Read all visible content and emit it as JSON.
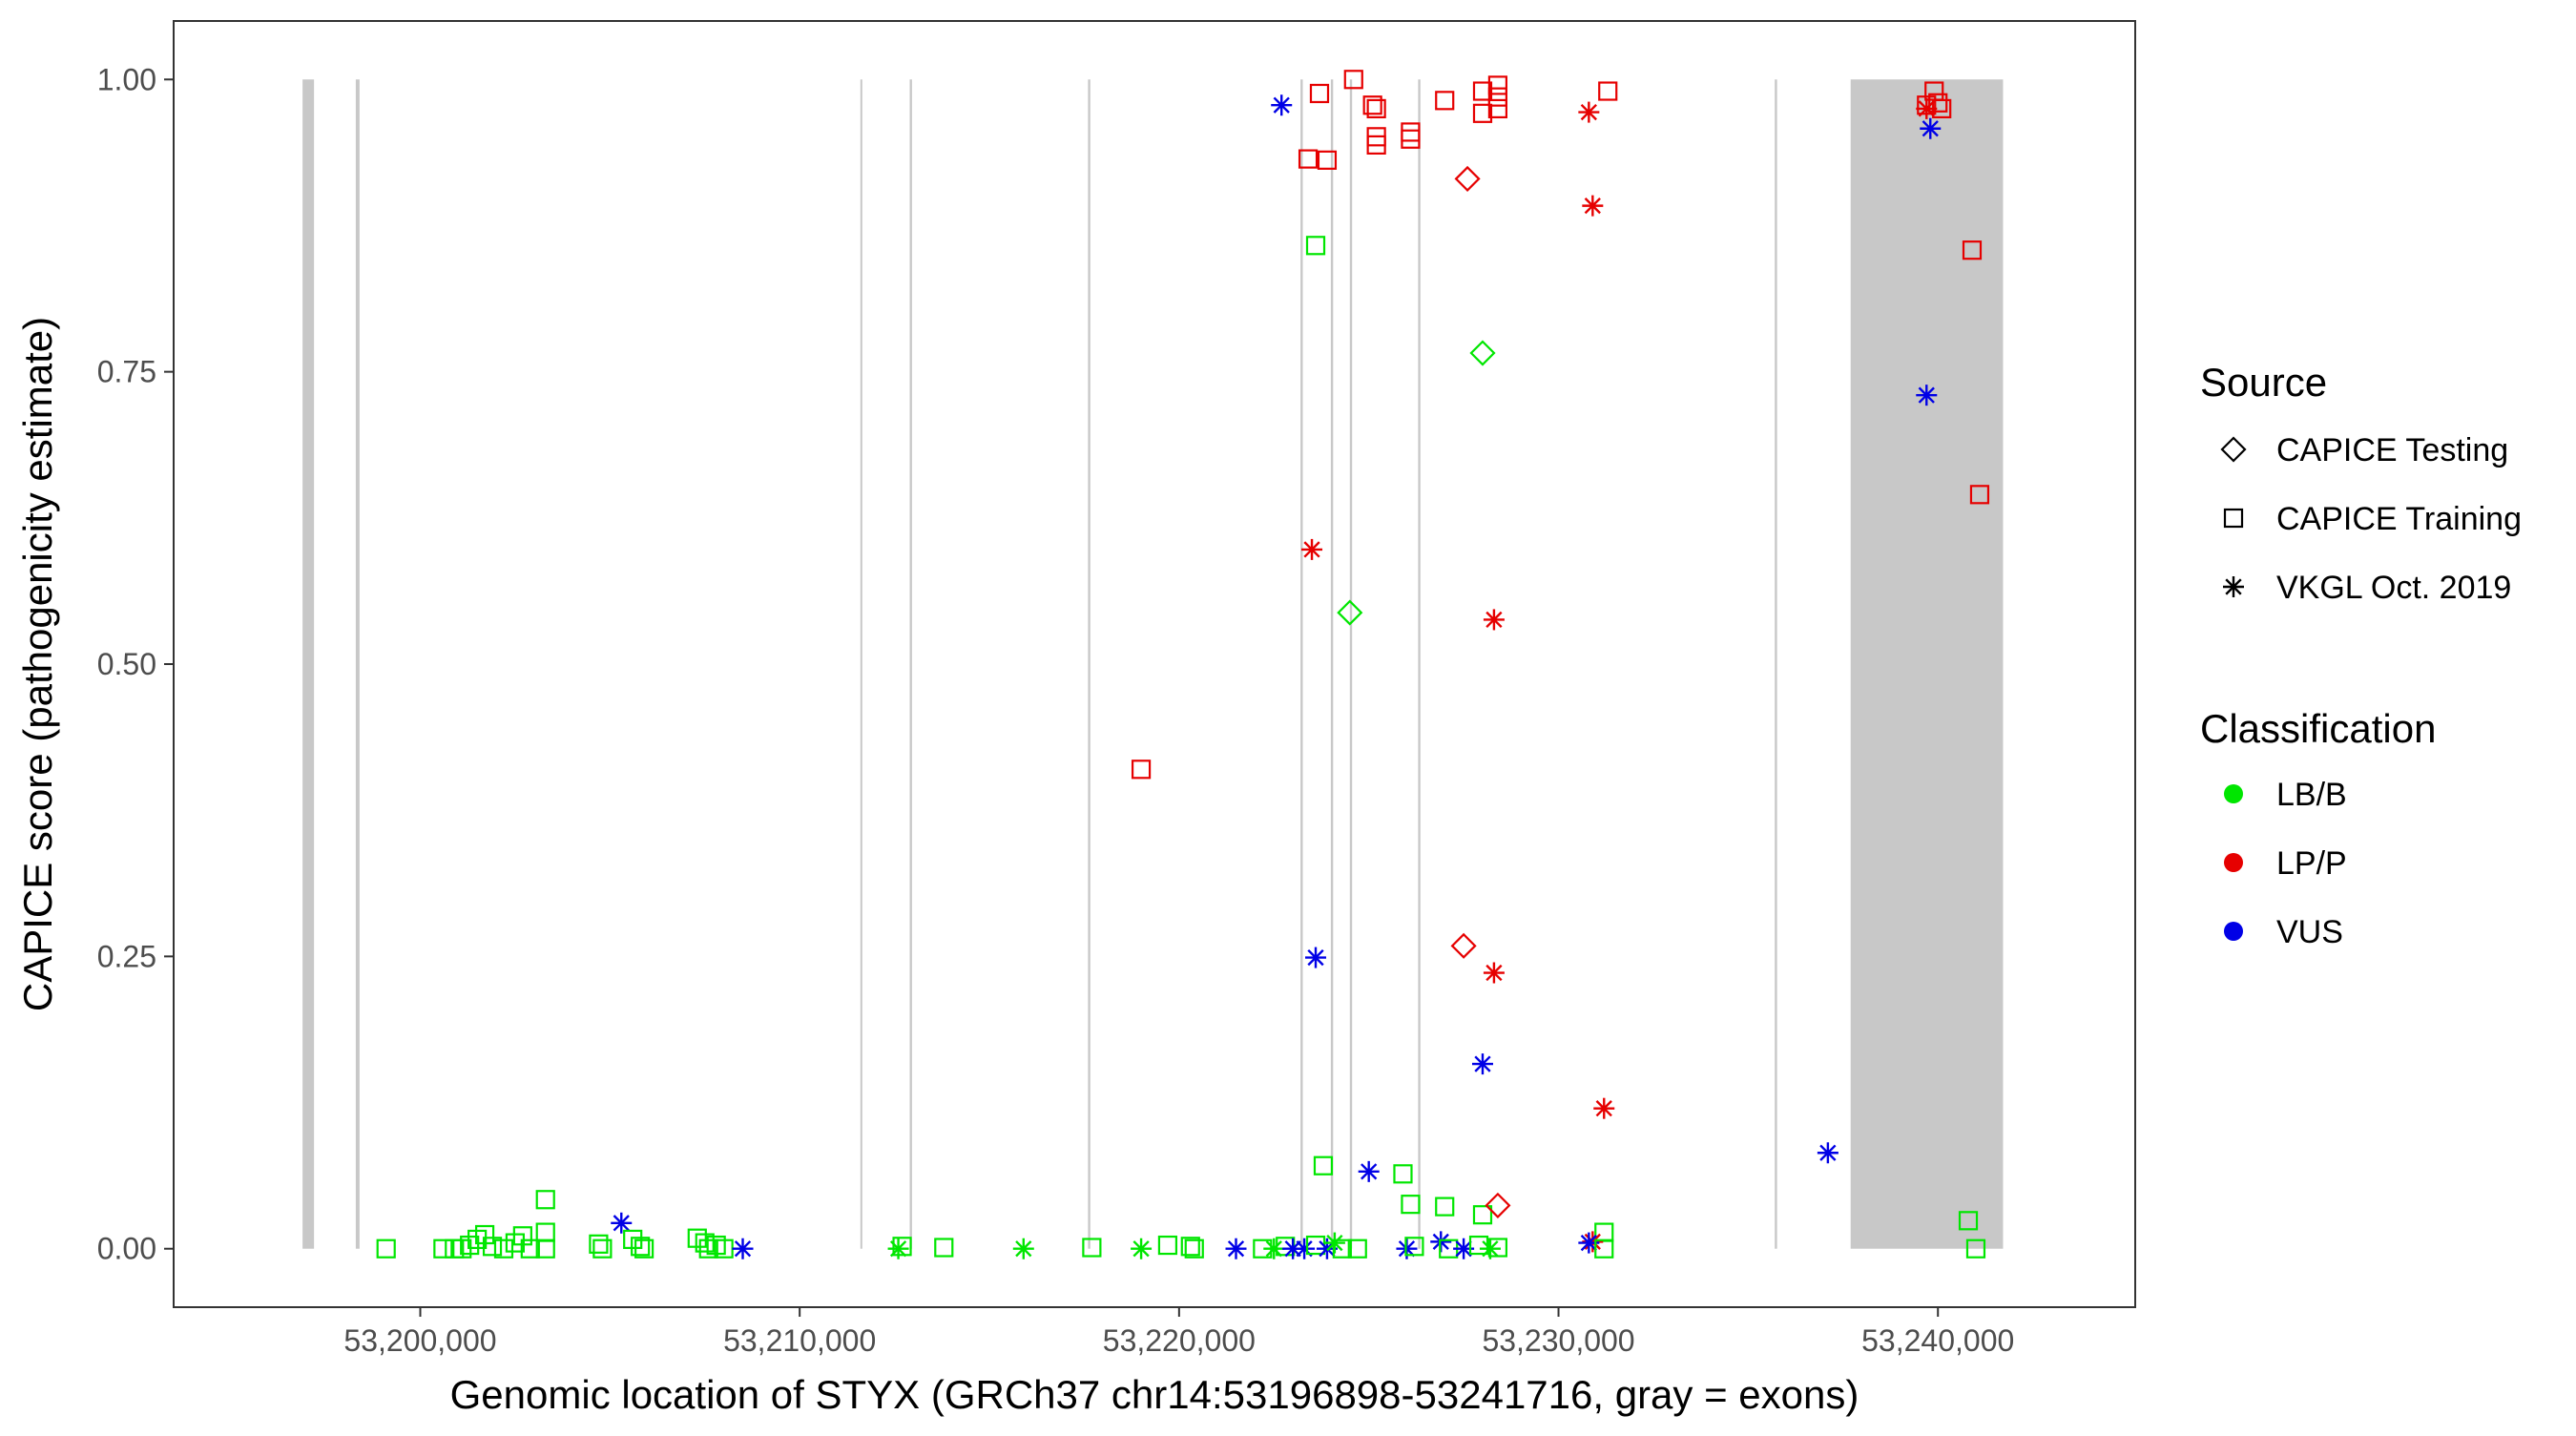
{
  "chart_data": {
    "type": "scatter",
    "xlabel": "Genomic location of STYX (GRCh37 chr14:53196898-53241716, gray = exons)",
    "ylabel": "CAPICE score (pathogenicity estimate)",
    "xlim": [
      53193500,
      53245200
    ],
    "ylim": [
      -0.05,
      1.05
    ],
    "x_ticks": [
      53200000,
      53210000,
      53220000,
      53230000,
      53240000
    ],
    "x_tick_labels": [
      "53,200,000",
      "53,210,000",
      "53,220,000",
      "53,230,000",
      "53,240,000"
    ],
    "y_ticks": [
      0,
      0.25,
      0.5,
      0.75,
      1
    ],
    "y_tick_labels": [
      "0.00",
      "0.25",
      "0.50",
      "0.75",
      "1.00"
    ],
    "grid": false,
    "legend_position": "right",
    "legend": {
      "source_title": "Source",
      "source_items": [
        {
          "label": "CAPICE Testing",
          "shape": "diamond"
        },
        {
          "label": "CAPICE Training",
          "shape": "square"
        },
        {
          "label": "VKGL Oct. 2019",
          "shape": "asterisk"
        }
      ],
      "class_title": "Classification",
      "class_items": [
        {
          "label": "LB/B",
          "color": "#00e600"
        },
        {
          "label": "LP/P",
          "color": "#e60000"
        },
        {
          "label": "VUS",
          "color": "#0000e6"
        }
      ]
    },
    "exons": [
      [
        53196898,
        53197200
      ],
      [
        53198300,
        53198400
      ],
      [
        53211600,
        53211640
      ],
      [
        53212900,
        53212960
      ],
      [
        53217600,
        53217660
      ],
      [
        53223200,
        53223260
      ],
      [
        53224000,
        53224060
      ],
      [
        53224500,
        53224560
      ],
      [
        53226300,
        53226360
      ],
      [
        53235700,
        53235760
      ],
      [
        53237700,
        53241716
      ]
    ],
    "points": [
      {
        "x": 53222700,
        "y": 0.978,
        "source": "VKGL Oct. 2019",
        "class": "VUS"
      },
      {
        "x": 53223400,
        "y": 0.932,
        "source": "CAPICE Training",
        "class": "LP/P"
      },
      {
        "x": 53223700,
        "y": 0.988,
        "source": "CAPICE Training",
        "class": "LP/P"
      },
      {
        "x": 53223900,
        "y": 0.931,
        "source": "CAPICE Training",
        "class": "LP/P"
      },
      {
        "x": 53224600,
        "y": 1.0,
        "source": "CAPICE Training",
        "class": "LP/P"
      },
      {
        "x": 53225100,
        "y": 0.978,
        "source": "CAPICE Training",
        "class": "LP/P"
      },
      {
        "x": 53225200,
        "y": 0.975,
        "source": "CAPICE Training",
        "class": "LP/P"
      },
      {
        "x": 53225200,
        "y": 0.951,
        "source": "CAPICE Training",
        "class": "LP/P"
      },
      {
        "x": 53225200,
        "y": 0.944,
        "source": "CAPICE Training",
        "class": "LP/P"
      },
      {
        "x": 53226100,
        "y": 0.955,
        "source": "CAPICE Training",
        "class": "LP/P"
      },
      {
        "x": 53226100,
        "y": 0.949,
        "source": "CAPICE Training",
        "class": "LP/P"
      },
      {
        "x": 53227000,
        "y": 0.982,
        "source": "CAPICE Training",
        "class": "LP/P"
      },
      {
        "x": 53228000,
        "y": 0.99,
        "source": "CAPICE Training",
        "class": "LP/P"
      },
      {
        "x": 53228000,
        "y": 0.971,
        "source": "CAPICE Training",
        "class": "LP/P"
      },
      {
        "x": 53228400,
        "y": 0.995,
        "source": "CAPICE Training",
        "class": "LP/P"
      },
      {
        "x": 53228400,
        "y": 0.985,
        "source": "CAPICE Training",
        "class": "LP/P"
      },
      {
        "x": 53228400,
        "y": 0.975,
        "source": "CAPICE Training",
        "class": "LP/P"
      },
      {
        "x": 53227600,
        "y": 0.915,
        "source": "CAPICE Testing",
        "class": "LP/P"
      },
      {
        "x": 53230800,
        "y": 0.972,
        "source": "VKGL Oct. 2019",
        "class": "LP/P"
      },
      {
        "x": 53231300,
        "y": 0.99,
        "source": "CAPICE Training",
        "class": "LP/P"
      },
      {
        "x": 53230900,
        "y": 0.892,
        "source": "VKGL Oct. 2019",
        "class": "LP/P"
      },
      {
        "x": 53239700,
        "y": 0.975,
        "source": "VKGL Oct. 2019",
        "class": "LP/P"
      },
      {
        "x": 53239900,
        "y": 0.99,
        "source": "CAPICE Training",
        "class": "LP/P"
      },
      {
        "x": 53240000,
        "y": 0.98,
        "source": "CAPICE Training",
        "class": "LP/P"
      },
      {
        "x": 53240100,
        "y": 0.975,
        "source": "CAPICE Training",
        "class": "LP/P"
      },
      {
        "x": 53239700,
        "y": 0.978,
        "source": "CAPICE Training",
        "class": "LP/P"
      },
      {
        "x": 53239800,
        "y": 0.958,
        "source": "VKGL Oct. 2019",
        "class": "VUS"
      },
      {
        "x": 53240900,
        "y": 0.854,
        "source": "CAPICE Training",
        "class": "LP/P"
      },
      {
        "x": 53223600,
        "y": 0.858,
        "source": "CAPICE Training",
        "class": "LB/B"
      },
      {
        "x": 53228000,
        "y": 0.766,
        "source": "CAPICE Testing",
        "class": "LB/B"
      },
      {
        "x": 53239700,
        "y": 0.73,
        "source": "VKGL Oct. 2019",
        "class": "VUS"
      },
      {
        "x": 53241100,
        "y": 0.645,
        "source": "CAPICE Training",
        "class": "LP/P"
      },
      {
        "x": 53223500,
        "y": 0.598,
        "source": "VKGL Oct. 2019",
        "class": "LP/P"
      },
      {
        "x": 53224500,
        "y": 0.544,
        "source": "CAPICE Testing",
        "class": "LB/B"
      },
      {
        "x": 53228300,
        "y": 0.538,
        "source": "VKGL Oct. 2019",
        "class": "LP/P"
      },
      {
        "x": 53219000,
        "y": 0.41,
        "source": "CAPICE Training",
        "class": "LP/P"
      },
      {
        "x": 53223600,
        "y": 0.249,
        "source": "VKGL Oct. 2019",
        "class": "VUS"
      },
      {
        "x": 53227500,
        "y": 0.259,
        "source": "CAPICE Testing",
        "class": "LP/P"
      },
      {
        "x": 53228300,
        "y": 0.236,
        "source": "VKGL Oct. 2019",
        "class": "LP/P"
      },
      {
        "x": 53228000,
        "y": 0.158,
        "source": "VKGL Oct. 2019",
        "class": "VUS"
      },
      {
        "x": 53231200,
        "y": 0.12,
        "source": "VKGL Oct. 2019",
        "class": "LP/P"
      },
      {
        "x": 53237100,
        "y": 0.082,
        "source": "VKGL Oct. 2019",
        "class": "VUS"
      },
      {
        "x": 53223800,
        "y": 0.071,
        "source": "CAPICE Training",
        "class": "LB/B"
      },
      {
        "x": 53225000,
        "y": 0.066,
        "source": "VKGL Oct. 2019",
        "class": "VUS"
      },
      {
        "x": 53225900,
        "y": 0.064,
        "source": "CAPICE Training",
        "class": "LB/B"
      },
      {
        "x": 53226100,
        "y": 0.038,
        "source": "CAPICE Training",
        "class": "LB/B"
      },
      {
        "x": 53227000,
        "y": 0.036,
        "source": "CAPICE Training",
        "class": "LB/B"
      },
      {
        "x": 53228000,
        "y": 0.029,
        "source": "CAPICE Training",
        "class": "LB/B"
      },
      {
        "x": 53228400,
        "y": 0.037,
        "source": "CAPICE Testing",
        "class": "LP/P"
      },
      {
        "x": 53231200,
        "y": 0.014,
        "source": "CAPICE Training",
        "class": "LB/B"
      },
      {
        "x": 53230900,
        "y": 0.006,
        "source": "VKGL Oct. 2019",
        "class": "LP/P"
      },
      {
        "x": 53230800,
        "y": 0.005,
        "source": "VKGL Oct. 2019",
        "class": "VUS"
      },
      {
        "x": 53231200,
        "y": 0.0,
        "source": "CAPICE Training",
        "class": "LB/B"
      },
      {
        "x": 53240800,
        "y": 0.024,
        "source": "CAPICE Training",
        "class": "LB/B"
      },
      {
        "x": 53241000,
        "y": 0.0,
        "source": "CAPICE Training",
        "class": "LB/B"
      },
      {
        "x": 53203300,
        "y": 0.042,
        "source": "CAPICE Training",
        "class": "LB/B"
      },
      {
        "x": 53205300,
        "y": 0.022,
        "source": "VKGL Oct. 2019",
        "class": "VUS"
      },
      {
        "x": 53199100,
        "y": 0.0,
        "source": "CAPICE Training",
        "class": "LB/B"
      },
      {
        "x": 53200600,
        "y": 0.0,
        "source": "CAPICE Training",
        "class": "LB/B"
      },
      {
        "x": 53200900,
        "y": 0.0,
        "source": "CAPICE Training",
        "class": "LB/B"
      },
      {
        "x": 53201100,
        "y": 0.0,
        "source": "CAPICE Training",
        "class": "LB/B"
      },
      {
        "x": 53201300,
        "y": 0.003,
        "source": "CAPICE Training",
        "class": "LB/B"
      },
      {
        "x": 53201500,
        "y": 0.008,
        "source": "CAPICE Training",
        "class": "LB/B"
      },
      {
        "x": 53201700,
        "y": 0.012,
        "source": "CAPICE Training",
        "class": "LB/B"
      },
      {
        "x": 53201900,
        "y": 0.002,
        "source": "CAPICE Training",
        "class": "LB/B"
      },
      {
        "x": 53202200,
        "y": 0.0,
        "source": "CAPICE Training",
        "class": "LB/B"
      },
      {
        "x": 53202500,
        "y": 0.005,
        "source": "CAPICE Training",
        "class": "LB/B"
      },
      {
        "x": 53202700,
        "y": 0.011,
        "source": "CAPICE Training",
        "class": "LB/B"
      },
      {
        "x": 53202900,
        "y": 0.0,
        "source": "CAPICE Training",
        "class": "LB/B"
      },
      {
        "x": 53203300,
        "y": 0.014,
        "source": "CAPICE Training",
        "class": "LB/B"
      },
      {
        "x": 53203300,
        "y": 0.0,
        "source": "CAPICE Training",
        "class": "LB/B"
      },
      {
        "x": 53204700,
        "y": 0.004,
        "source": "CAPICE Training",
        "class": "LB/B"
      },
      {
        "x": 53204800,
        "y": 0.0,
        "source": "CAPICE Training",
        "class": "LB/B"
      },
      {
        "x": 53205600,
        "y": 0.008,
        "source": "CAPICE Training",
        "class": "LB/B"
      },
      {
        "x": 53205800,
        "y": 0.002,
        "source": "CAPICE Training",
        "class": "LB/B"
      },
      {
        "x": 53205900,
        "y": 0.0,
        "source": "CAPICE Training",
        "class": "LB/B"
      },
      {
        "x": 53207300,
        "y": 0.009,
        "source": "CAPICE Training",
        "class": "LB/B"
      },
      {
        "x": 53207500,
        "y": 0.005,
        "source": "CAPICE Training",
        "class": "LB/B"
      },
      {
        "x": 53207600,
        "y": 0.0,
        "source": "CAPICE Training",
        "class": "LB/B"
      },
      {
        "x": 53207800,
        "y": 0.003,
        "source": "CAPICE Training",
        "class": "LB/B"
      },
      {
        "x": 53208000,
        "y": 0.0,
        "source": "CAPICE Training",
        "class": "LB/B"
      },
      {
        "x": 53208500,
        "y": 0.0,
        "source": "VKGL Oct. 2019",
        "class": "VUS"
      },
      {
        "x": 53212600,
        "y": 0.0,
        "source": "VKGL Oct. 2019",
        "class": "LB/B"
      },
      {
        "x": 53212700,
        "y": 0.002,
        "source": "CAPICE Training",
        "class": "LB/B"
      },
      {
        "x": 53213800,
        "y": 0.001,
        "source": "CAPICE Training",
        "class": "LB/B"
      },
      {
        "x": 53215900,
        "y": 0.0,
        "source": "VKGL Oct. 2019",
        "class": "LB/B"
      },
      {
        "x": 53217700,
        "y": 0.001,
        "source": "CAPICE Training",
        "class": "LB/B"
      },
      {
        "x": 53219000,
        "y": 0.0,
        "source": "VKGL Oct. 2019",
        "class": "LB/B"
      },
      {
        "x": 53219700,
        "y": 0.003,
        "source": "CAPICE Training",
        "class": "LB/B"
      },
      {
        "x": 53220300,
        "y": 0.002,
        "source": "CAPICE Training",
        "class": "LB/B"
      },
      {
        "x": 53220400,
        "y": 0.0,
        "source": "CAPICE Training",
        "class": "LB/B"
      },
      {
        "x": 53221500,
        "y": 0.0,
        "source": "VKGL Oct. 2019",
        "class": "VUS"
      },
      {
        "x": 53222200,
        "y": 0.0,
        "source": "CAPICE Training",
        "class": "LB/B"
      },
      {
        "x": 53222500,
        "y": 0.0,
        "source": "VKGL Oct. 2019",
        "class": "LB/B"
      },
      {
        "x": 53222800,
        "y": 0.002,
        "source": "CAPICE Training",
        "class": "LB/B"
      },
      {
        "x": 53223000,
        "y": 0.0,
        "source": "VKGL Oct. 2019",
        "class": "VUS"
      },
      {
        "x": 53223300,
        "y": 0.0,
        "source": "VKGL Oct. 2019",
        "class": "VUS"
      },
      {
        "x": 53223600,
        "y": 0.003,
        "source": "CAPICE Training",
        "class": "LB/B"
      },
      {
        "x": 53223900,
        "y": 0.0,
        "source": "VKGL Oct. 2019",
        "class": "VUS"
      },
      {
        "x": 53224100,
        "y": 0.005,
        "source": "VKGL Oct. 2019",
        "class": "LB/B"
      },
      {
        "x": 53224300,
        "y": 0.0,
        "source": "CAPICE Training",
        "class": "LB/B"
      },
      {
        "x": 53224700,
        "y": 0.0,
        "source": "CAPICE Training",
        "class": "LB/B"
      },
      {
        "x": 53226000,
        "y": 0.0,
        "source": "VKGL Oct. 2019",
        "class": "VUS"
      },
      {
        "x": 53226200,
        "y": 0.002,
        "source": "CAPICE Training",
        "class": "LB/B"
      },
      {
        "x": 53226900,
        "y": 0.006,
        "source": "VKGL Oct. 2019",
        "class": "VUS"
      },
      {
        "x": 53227100,
        "y": 0.0,
        "source": "CAPICE Training",
        "class": "LB/B"
      },
      {
        "x": 53227500,
        "y": 0.0,
        "source": "VKGL Oct. 2019",
        "class": "VUS"
      },
      {
        "x": 53227900,
        "y": 0.003,
        "source": "CAPICE Training",
        "class": "LB/B"
      },
      {
        "x": 53228200,
        "y": 0.0,
        "source": "VKGL Oct. 2019",
        "class": "LB/B"
      },
      {
        "x": 53228400,
        "y": 0.001,
        "source": "CAPICE Training",
        "class": "LB/B"
      }
    ]
  }
}
